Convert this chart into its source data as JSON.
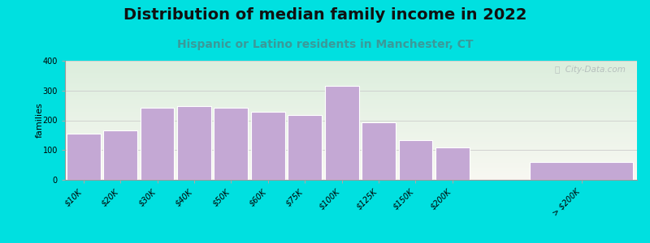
{
  "title": "Distribution of median family income in 2022",
  "subtitle": "Hispanic or Latino residents in Manchester, CT",
  "ylabel": "families",
  "categories": [
    "$10K",
    "$20K",
    "$30K",
    "$40K",
    "$50K",
    "$60K",
    "$75K",
    "$100K",
    "$125K",
    "$150K",
    "$200K",
    "> $200K"
  ],
  "values": [
    155,
    165,
    243,
    248,
    243,
    228,
    217,
    315,
    192,
    133,
    108,
    60
  ],
  "bar_color": "#c4a8d4",
  "bar_edge_color": "#ffffff",
  "background_outer": "#00e0e0",
  "plot_bg_top": "#dceedd",
  "plot_bg_bottom": "#f8f8f2",
  "title_fontsize": 14,
  "subtitle_fontsize": 10,
  "subtitle_color": "#3a9a9a",
  "ylabel_fontsize": 8,
  "tick_fontsize": 7,
  "ylim": [
    0,
    400
  ],
  "yticks": [
    0,
    100,
    200,
    300,
    400
  ],
  "watermark": "ⓘ  City-Data.com",
  "watermark_color": "#b0b8b8"
}
